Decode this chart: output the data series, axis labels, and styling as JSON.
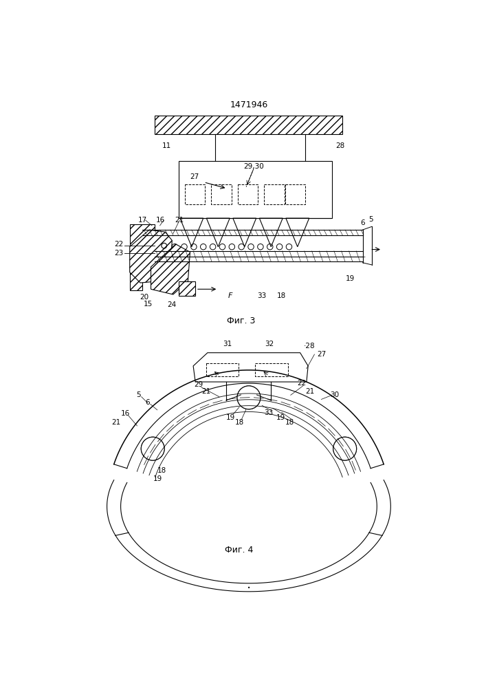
{
  "title": "1471946",
  "bg_color": "#ffffff",
  "line_color": "#000000",
  "fig3_caption": "Фиг. 3",
  "fig4_caption": "Фиг. 4"
}
